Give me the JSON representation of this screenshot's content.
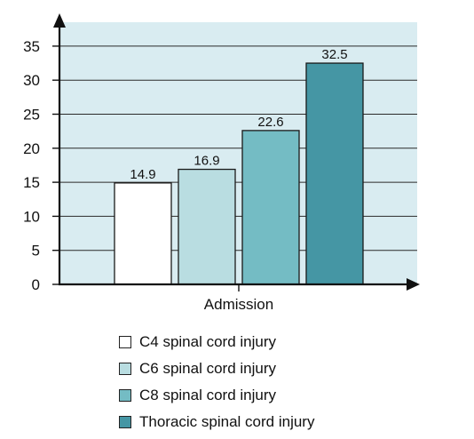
{
  "chart_data": {
    "type": "bar",
    "title": "",
    "xlabel": "",
    "ylabel": "",
    "categories": [
      "Admission"
    ],
    "ylim": [
      0,
      37
    ],
    "yticks": [
      0,
      5,
      10,
      15,
      20,
      25,
      30,
      35
    ],
    "grid": true,
    "legend_position": "bottom",
    "plot_background": "#d9ecf1",
    "series": [
      {
        "name": "C4 spinal cord injury",
        "values": [
          14.9
        ],
        "color": "#ffffff",
        "value_label": "14.9"
      },
      {
        "name": "C6 spinal cord injury",
        "values": [
          16.9
        ],
        "color": "#b9dde1",
        "value_label": "16.9"
      },
      {
        "name": "C8 spinal cord injury",
        "values": [
          22.6
        ],
        "color": "#74bcc4",
        "value_label": "22.6"
      },
      {
        "name": "Thoracic spinal cord injury",
        "values": [
          32.5
        ],
        "color": "#4596a4",
        "value_label": "32.5"
      }
    ]
  }
}
